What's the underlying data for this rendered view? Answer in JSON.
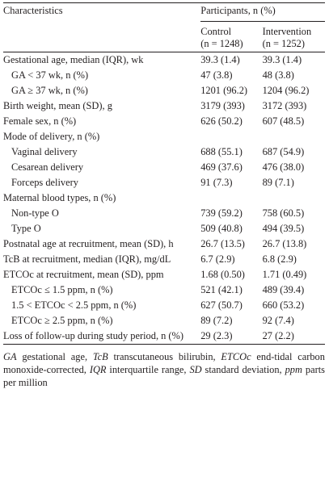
{
  "header": {
    "characteristics": "Characteristics",
    "participants": "Participants, n (%)",
    "groups": [
      {
        "name": "Control",
        "n": "(n = 1248)"
      },
      {
        "name": "Intervention",
        "n": "(n = 1252)"
      }
    ]
  },
  "table": {
    "rows": [
      {
        "label": "Gestational age, median (IQR), wk",
        "control": "39.3 (1.4)",
        "intervention": "39.3 (1.4)",
        "rows": [
          {
            "label": "GA < 37 wk, n (%)",
            "control": "47 (3.8)",
            "intervention": "48 (3.8)"
          },
          {
            "label": "GA ≥ 37 wk, n (%)",
            "control": "1201 (96.2)",
            "intervention": "1204 (96.2)"
          }
        ]
      },
      {
        "label": "Birth weight, mean (SD), g",
        "control": "3179 (393)",
        "intervention": "3172 (393)"
      },
      {
        "label": "Female sex, n (%)",
        "control": "626 (50.2)",
        "intervention": "607 (48.5)"
      },
      {
        "label": "Mode of delivery, n (%)",
        "rows": [
          {
            "label": "Vaginal delivery",
            "control": "688 (55.1)",
            "intervention": "687 (54.9)"
          },
          {
            "label": "Cesarean delivery",
            "control": "469 (37.6)",
            "intervention": "476 (38.0)"
          },
          {
            "label": "Forceps delivery",
            "control": "91 (7.3)",
            "intervention": "89 (7.1)"
          }
        ]
      },
      {
        "label": "Maternal blood types, n (%)",
        "rows": [
          {
            "label": "Non-type O",
            "control": "739 (59.2)",
            "intervention": "758 (60.5)"
          },
          {
            "label": "Type O",
            "control": "509 (40.8)",
            "intervention": "494 (39.5)"
          }
        ]
      },
      {
        "label": "Postnatal age at recruitment, mean (SD), h",
        "control": "26.7 (13.5)",
        "intervention": "26.7 (13.8)"
      },
      {
        "label": "TcB at recruitment, median (IQR), mg/dL",
        "control": "6.7 (2.9)",
        "intervention": "6.8 (2.9)"
      },
      {
        "label": "ETCOc at recruitment, mean (SD), ppm",
        "control": "1.68 (0.50)",
        "intervention": "1.71 (0.49)",
        "rows": [
          {
            "label": "ETCOc ≤ 1.5 ppm, n (%)",
            "control": "521 (42.1)",
            "intervention": "489 (39.4)"
          },
          {
            "label": "1.5 < ETCOc < 2.5 ppm, n (%)",
            "control": "627 (50.7)",
            "intervention": "660 (53.2)"
          },
          {
            "label": "ETCOc ≥ 2.5 ppm, n (%)",
            "control": "89 (7.2)",
            "intervention": "92 (7.4)"
          }
        ]
      },
      {
        "label": "Loss of follow-up during study period, n (%)",
        "control": "29 (2.3)",
        "intervention": "27 (2.2)"
      }
    ]
  },
  "footnote": {
    "items": [
      {
        "term": "GA",
        "definition": "gestational age,"
      },
      {
        "term": "TcB",
        "definition": "transcutaneous bilirubin,"
      },
      {
        "term": "ETCOc",
        "definition": "end-tidal carbon monoxide-corrected,"
      },
      {
        "term": "IQR",
        "definition": "interquartile range,"
      },
      {
        "term": "SD",
        "definition": "standard deviation,"
      },
      {
        "term": "ppm",
        "definition": "parts per million"
      }
    ]
  }
}
